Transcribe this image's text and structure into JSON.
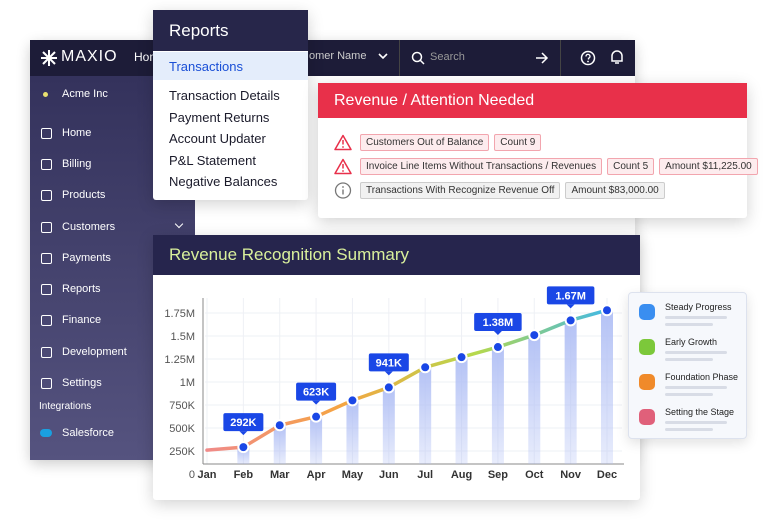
{
  "app": {
    "logo": "MAXIO",
    "nav_partial": "Hom",
    "customer_select": "omer Name",
    "search_placeholder": "Search",
    "account": "Acme Inc",
    "sidebar": [
      "Home",
      "Billing",
      "Products",
      "Customers",
      "Payments",
      "Reports",
      "Finance",
      "Development",
      "Settings"
    ],
    "integrations_heading": "Integrations",
    "integrations": [
      "Salesforce"
    ]
  },
  "reports_menu": {
    "title": "Reports",
    "items": [
      "Transactions",
      "Transaction Details",
      "Payment Returns",
      "Account Updater",
      "P&L Statement",
      "Negative Balances"
    ]
  },
  "alert_card": {
    "title": "Revenue / Attention Needed",
    "rows": [
      {
        "level": "warning",
        "tags": [
          "Customers Out of Balance",
          "Count 9"
        ]
      },
      {
        "level": "warning",
        "tags": [
          "Invoice Line Items Without Transactions / Revenues",
          "Count 5",
          "Amount $11,225.00"
        ]
      },
      {
        "level": "info",
        "tags": [
          "Transactions With Recognize Revenue Off",
          "Amount $83,000.00"
        ]
      }
    ]
  },
  "chart_data": {
    "type": "line",
    "title": "Revenue Recognition Summary",
    "categories": [
      "Jan",
      "Feb",
      "Mar",
      "Apr",
      "May",
      "Jun",
      "Jul",
      "Aug",
      "Sep",
      "Oct",
      "Nov",
      "Dec"
    ],
    "values": [
      260000,
      292000,
      530000,
      623000,
      800000,
      941000,
      1160000,
      1270000,
      1380000,
      1510000,
      1670000,
      1780000
    ],
    "value_labels": [
      null,
      "292K",
      null,
      "623K",
      null,
      "941K",
      null,
      null,
      "1.38M",
      null,
      "1.67M",
      null
    ],
    "bar_values": [
      null,
      292000,
      530000,
      623000,
      800000,
      941000,
      1160000,
      1270000,
      1380000,
      1510000,
      1670000,
      1780000
    ],
    "ylim": [
      0,
      1750000
    ],
    "yticks": [
      0,
      {
        "value": 250000,
        "label": "250K"
      },
      {
        "value": 500000,
        "label": "500K"
      },
      {
        "value": 750000,
        "label": "750K"
      },
      {
        "value": 1000000,
        "label": "1M"
      },
      {
        "value": 1250000,
        "label": "1.25M"
      },
      {
        "value": 1500000,
        "label": "1.5M"
      },
      {
        "value": 1750000,
        "label": "1.75M"
      }
    ],
    "grid": true,
    "line_colors": [
      "#f08a8a",
      "#f5a442",
      "#b6d94c",
      "#3fb8e8"
    ],
    "bar_color": "#b4c2f5",
    "point_color": "#1a47e6"
  },
  "legend_card": {
    "items": [
      {
        "name": "Steady Progress",
        "color": "#3a8ef0"
      },
      {
        "name": "Early Growth",
        "color": "#7cc83a"
      },
      {
        "name": "Foundation Phase",
        "color": "#f08a2a"
      },
      {
        "name": "Setting the Stage",
        "color": "#e0607a"
      }
    ]
  }
}
